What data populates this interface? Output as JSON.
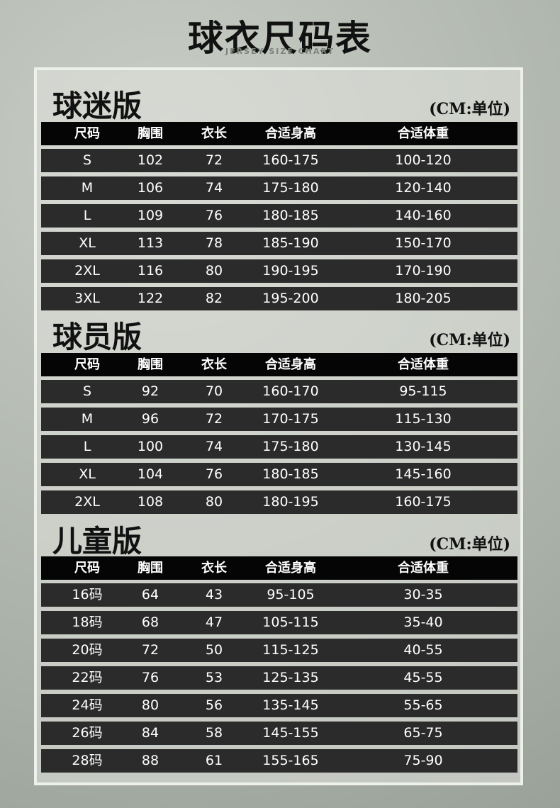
{
  "title": "球衣尺码表",
  "subtitle": "JERSEY SIZE CHART",
  "sections": [
    {
      "title": "球迷版",
      "unit": "(CM:单位)",
      "header": [
        "尺码",
        "胸围",
        "衣长",
        "合适身高",
        "合适体重"
      ],
      "rows": [
        [
          "S",
          102,
          72,
          "160-175",
          "100-120"
        ],
        [
          "M",
          106,
          74,
          "175-180",
          "120-140"
        ],
        [
          "L",
          109,
          76,
          "180-185",
          "140-160"
        ],
        [
          "XL",
          113,
          78,
          "185-190",
          "150-170"
        ],
        [
          "2XL",
          116,
          80,
          "190-195",
          "170-190"
        ],
        [
          "3XL",
          122,
          82,
          "195-200",
          "180-205"
        ]
      ]
    },
    {
      "title": "球员版",
      "unit": "(CM:单位)",
      "header": [
        "尺码",
        "胸围",
        "衣长",
        "合适身高",
        "合适体重"
      ],
      "rows": [
        [
          "S",
          92,
          70,
          "160-170",
          "95-115"
        ],
        [
          "M",
          96,
          72,
          "170-175",
          "115-130"
        ],
        [
          "L",
          100,
          74,
          "175-180",
          "130-145"
        ],
        [
          "XL",
          104,
          76,
          "180-185",
          "145-160"
        ],
        [
          "2XL",
          108,
          80,
          "180-195",
          "160-175"
        ]
      ]
    },
    {
      "title": "儿童版",
      "unit": "(CM:单位)",
      "header": [
        "尺码",
        "胸围",
        "衣长",
        "合适身高",
        "合适体重"
      ],
      "rows": [
        [
          "16码",
          64,
          43,
          "95-105",
          "30-35"
        ],
        [
          "18码",
          68,
          47,
          "105-115",
          "35-40"
        ],
        [
          "20码",
          72,
          50,
          "115-125",
          "40-55"
        ],
        [
          "22码",
          76,
          53,
          "125-135",
          "45-55"
        ],
        [
          "24码",
          80,
          56,
          "135-145",
          "55-65"
        ],
        [
          "26码",
          84,
          58,
          "145-155",
          "65-75"
        ],
        [
          "28码",
          88,
          61,
          "155-165",
          "75-90"
        ]
      ]
    }
  ]
}
